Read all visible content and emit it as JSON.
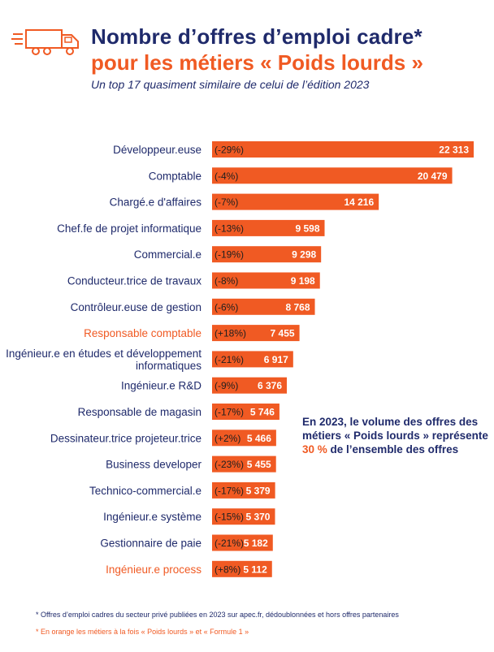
{
  "header": {
    "title_line1": "Nombre d’offres d’emploi cadre*",
    "title_line2": "pour les métiers « Poids lourds »",
    "subtitle": "Un top 17 quasiment similaire de celui de l’édition 2023",
    "icon": "truck-icon"
  },
  "colors": {
    "navy": "#1f2a6b",
    "orange": "#f05a23",
    "bar": "#f05a23"
  },
  "chart_data": {
    "type": "bar",
    "orientation": "horizontal",
    "title": "",
    "xlabel": "",
    "ylabel": "",
    "xlim": [
      0,
      22313
    ],
    "categories": [
      "Développeur.euse",
      "Comptable",
      "Chargé.e d'affaires",
      "Chef.fe de projet informatique",
      "Commercial.e",
      "Conducteur.trice de travaux",
      "Contrôleur.euse de gestion",
      "Responsable comptable",
      "Ingénieur.e en études et développement informatiques",
      "Ingénieur.e R&D",
      "Responsable de magasin",
      "Dessinateur.trice projeteur.trice",
      "Business developer",
      "Technico-commercial.e",
      "Ingénieur.e système",
      "Gestionnaire de paie",
      "Ingénieur.e process"
    ],
    "values": [
      22313,
      20479,
      14216,
      9598,
      9298,
      9198,
      8768,
      7455,
      6917,
      6376,
      5746,
      5466,
      5455,
      5379,
      5370,
      5182,
      5112
    ],
    "value_labels": [
      "22 313",
      "20 479",
      "14 216",
      "9 598",
      "9 298",
      "9 198",
      "8 768",
      "7 455",
      "6 917",
      "6 376",
      "5 746",
      "5 466",
      "5 455",
      "5 379",
      "5 370",
      "5 182",
      "5 112"
    ],
    "changes": [
      "(-29%)",
      "(-4%)",
      "(-7%)",
      "(-13%)",
      "(-19%)",
      "(-8%)",
      "(-6%)",
      "(+18%)",
      "(-21%)",
      "(-9%)",
      "(-17%)",
      "(+2%)",
      "(-23%)",
      "(-17%)",
      "(-15%)",
      "(-21%)",
      "(+8%)"
    ],
    "highlighted": [
      false,
      false,
      false,
      false,
      false,
      false,
      false,
      true,
      false,
      false,
      false,
      false,
      false,
      false,
      false,
      false,
      true
    ],
    "grid": false,
    "legend": "none"
  },
  "callout": {
    "part1": "En 2023, le volume des offres des métiers « Poids lourds » représente ",
    "highlight": "30 %",
    "part2": " de l’ensemble des offres"
  },
  "footnotes": {
    "note1": "* Offres d’emploi cadres du secteur privé publiées en 2023 sur apec.fr, dédoublonnées et hors offres partenaires",
    "note2": "* En orange les métiers à la fois « Poids lourds » et « Formule 1 »"
  }
}
